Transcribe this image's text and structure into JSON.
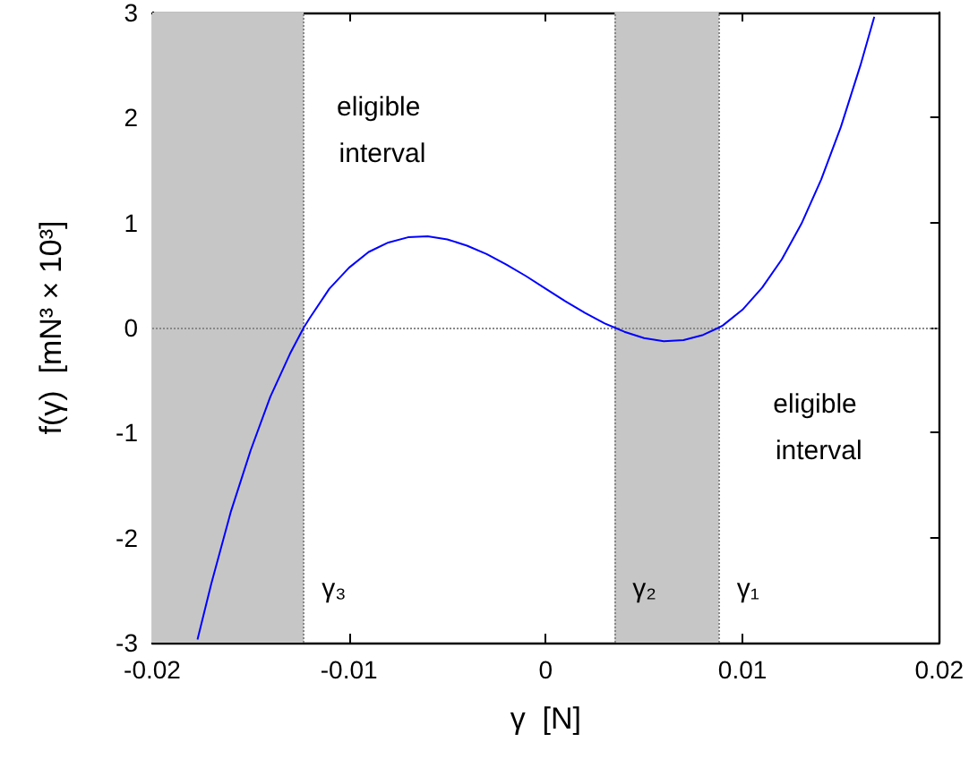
{
  "chart_data": {
    "type": "line",
    "xlabel": "γ  [N]",
    "ylabel": "f(γ)  [mN³ × 10³]",
    "x": [
      -0.0177,
      -0.017,
      -0.016,
      -0.015,
      -0.014,
      -0.013,
      -0.0123,
      -0.012,
      -0.011,
      -0.01,
      -0.009,
      -0.008,
      -0.007,
      -0.006,
      -0.005,
      -0.004,
      -0.003,
      -0.002,
      -0.001,
      0,
      0.001,
      0.002,
      0.003,
      0.0035,
      0.004,
      0.005,
      0.006,
      0.007,
      0.008,
      0.0088,
      0.009,
      0.01,
      0.011,
      0.012,
      0.013,
      0.014,
      0.015,
      0.016,
      0.0167
    ],
    "series": [
      {
        "color": "#0000ff",
        "values": [
          -2.97,
          -2.44,
          -1.75,
          -1.17,
          -0.66,
          -0.25,
          0,
          0.09,
          0.37,
          0.57,
          0.72,
          0.81,
          0.86,
          0.87,
          0.84,
          0.78,
          0.7,
          0.6,
          0.49,
          0.37,
          0.25,
          0.14,
          0.04,
          0,
          -0.04,
          -0.1,
          -0.13,
          -0.12,
          -0.07,
          0,
          0.02,
          0.17,
          0.38,
          0.65,
          0.99,
          1.41,
          1.91,
          2.5,
          2.96
        ]
      }
    ],
    "xlim": [
      -0.02,
      0.02
    ],
    "xticks": [
      -0.02,
      -0.01,
      0,
      0.01,
      0.02
    ],
    "ylim": [
      -3,
      3
    ],
    "yticks": [
      -3,
      -2,
      -1,
      0,
      1,
      2,
      3
    ],
    "bands": [
      {
        "axis": "x",
        "from": -0.02,
        "to": -0.0123,
        "color": "#c6c6c6"
      },
      {
        "axis": "x",
        "from": 0.0035,
        "to": 0.0088,
        "color": "#c6c6c6"
      }
    ],
    "ref_lines": [
      {
        "axis": "y",
        "value": 0,
        "line_style": "dotted",
        "color": "#888888"
      },
      {
        "axis": "x",
        "value": -0.0123,
        "line_style": "dotted",
        "color": "#888888",
        "label": "γ₃"
      },
      {
        "axis": "x",
        "value": 0.0035,
        "line_style": "dotted",
        "color": "#888888",
        "label": "γ₂"
      },
      {
        "axis": "x",
        "value": 0.0088,
        "line_style": "dotted",
        "color": "#888888",
        "label": "γ₁"
      }
    ],
    "annotations": [
      "eligible interval",
      "eligible interval"
    ],
    "grid": false,
    "marker": "none",
    "line_style": "solid"
  }
}
